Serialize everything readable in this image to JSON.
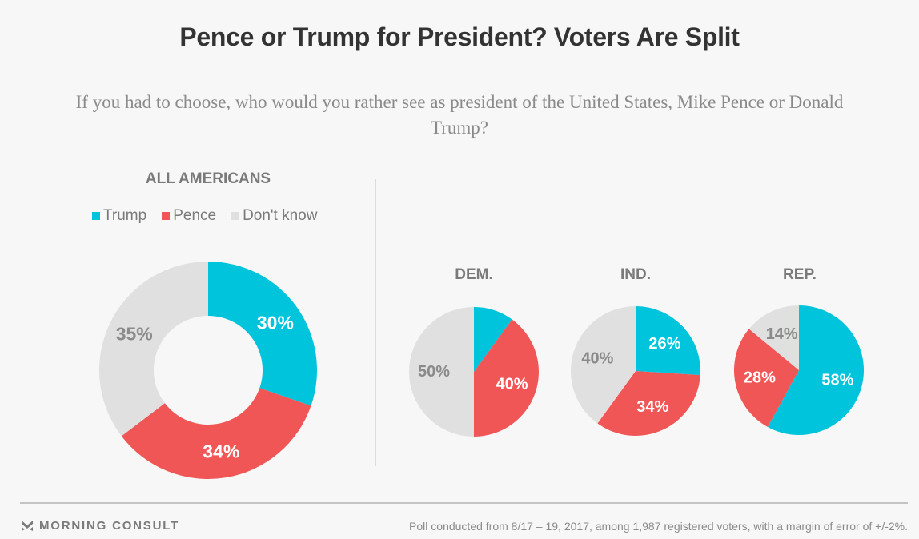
{
  "chart_data": {
    "type": "pie",
    "title": "Pence or Trump for President? Voters Are Split",
    "subtitle": "If you had to choose, who would you rather see as president of the United States, Mike Pence or Donald Trump?",
    "legend": {
      "placement": "top-left",
      "entries": [
        {
          "name": "Trump",
          "color": "#00c4dc"
        },
        {
          "name": "Pence",
          "color": "#f05656"
        },
        {
          "name": "Don't know",
          "color": "#e0e0e0"
        }
      ]
    },
    "charts": [
      {
        "id": "all",
        "label": "ALL AMERICANS",
        "style": "donut",
        "slices": [
          {
            "name": "Trump",
            "value": 30,
            "label": "30%"
          },
          {
            "name": "Pence",
            "value": 34,
            "label": "34%"
          },
          {
            "name": "Don't know",
            "value": 35,
            "label": "35%"
          }
        ]
      },
      {
        "id": "dem",
        "label": "DEM.",
        "style": "pie",
        "slices": [
          {
            "name": "Trump",
            "value": 10,
            "label": ""
          },
          {
            "name": "Pence",
            "value": 40,
            "label": "40%"
          },
          {
            "name": "Don't know",
            "value": 50,
            "label": "50%"
          }
        ]
      },
      {
        "id": "ind",
        "label": "IND.",
        "style": "pie",
        "slices": [
          {
            "name": "Trump",
            "value": 26,
            "label": "26%"
          },
          {
            "name": "Pence",
            "value": 34,
            "label": "34%"
          },
          {
            "name": "Don't know",
            "value": 40,
            "label": "40%"
          }
        ]
      },
      {
        "id": "rep",
        "label": "REP.",
        "style": "pie",
        "slices": [
          {
            "name": "Trump",
            "value": 58,
            "label": "58%"
          },
          {
            "name": "Pence",
            "value": 28,
            "label": "28%"
          },
          {
            "name": "Don't know",
            "value": 14,
            "label": "14%"
          }
        ]
      }
    ]
  },
  "footer": {
    "brand": "MORNING CONSULT",
    "brand_icon": "morning-consult-logo-icon",
    "note": "Poll conducted from 8/17 – 19, 2017, among 1,987 registered voters, with a margin of error of +/-2%."
  }
}
